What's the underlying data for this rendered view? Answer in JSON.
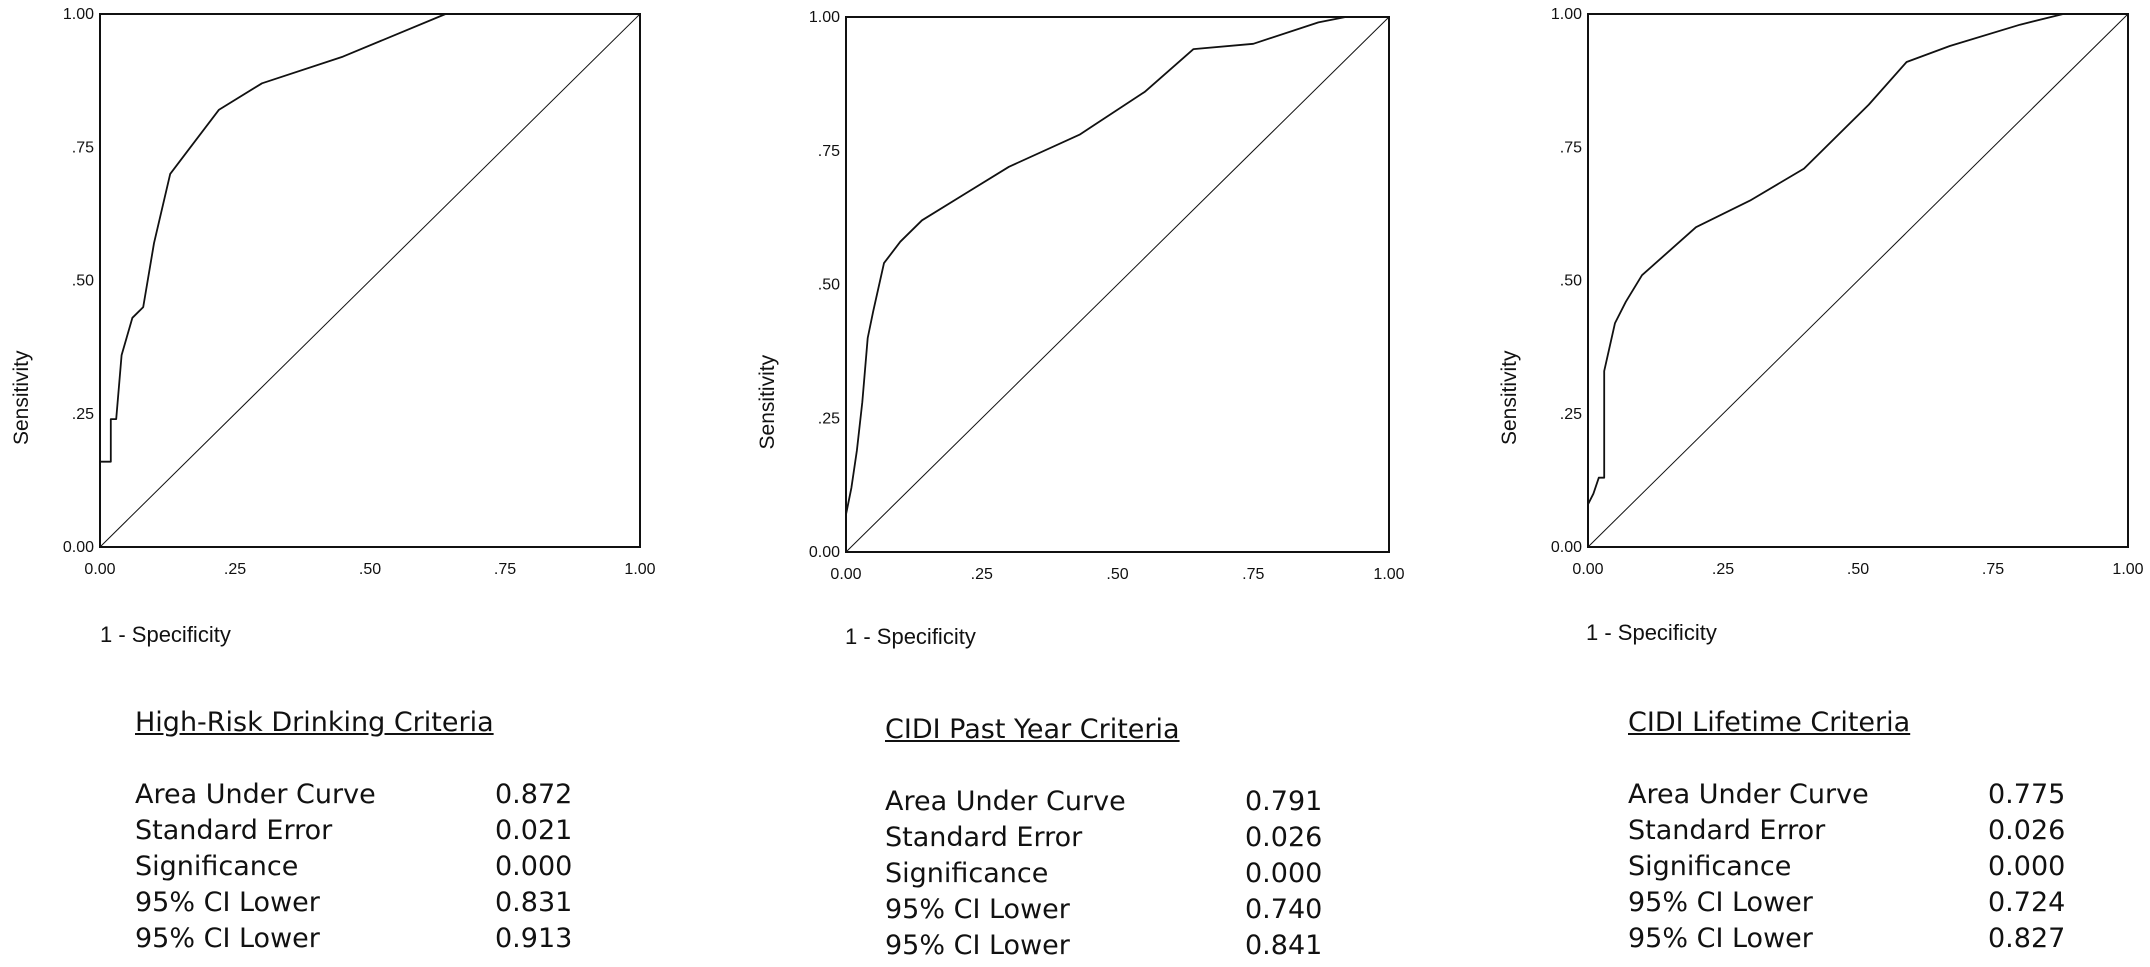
{
  "chart_data": [
    {
      "type": "line",
      "title": "High-Risk Drinking Criteria",
      "xlabel": "1 - Specificity",
      "ylabel": "Sensitivity",
      "xlim": [
        0,
        1
      ],
      "ylim": [
        0,
        1
      ],
      "x_ticks": [
        "0.00",
        ".25",
        ".50",
        ".75",
        "1.00"
      ],
      "y_ticks": [
        "0.00",
        ".25",
        ".50",
        ".75",
        "1.00"
      ],
      "grid": false,
      "series": [
        {
          "role": "roc",
          "x": [
            0,
            0,
            0.02,
            0.02,
            0.03,
            0.04,
            0.06,
            0.08,
            0.1,
            0.13,
            0.16,
            0.22,
            0.3,
            0.45,
            0.64,
            1.0
          ],
          "y": [
            0,
            0.16,
            0.16,
            0.24,
            0.24,
            0.36,
            0.43,
            0.45,
            0.57,
            0.7,
            0.74,
            0.82,
            0.87,
            0.92,
            1.0,
            1.0
          ]
        },
        {
          "role": "reference",
          "x": [
            0,
            1
          ],
          "y": [
            0,
            1
          ]
        }
      ],
      "stats": [
        {
          "label": "Area Under Curve",
          "value": "0.872"
        },
        {
          "label": "Standard Error",
          "value": "0.021"
        },
        {
          "label": "Significance",
          "value": "0.000"
        },
        {
          "label": "95% CI Lower",
          "value": "0.831"
        },
        {
          "label": "95% CI Lower",
          "value": "0.913"
        }
      ]
    },
    {
      "type": "line",
      "title": "CIDI Past Year Criteria",
      "xlabel": "1 - Specificity",
      "ylabel": "Sensitivity",
      "xlim": [
        0,
        1
      ],
      "ylim": [
        0,
        1
      ],
      "x_ticks": [
        "0.00",
        ".25",
        ".50",
        ".75",
        "1.00"
      ],
      "y_ticks": [
        "0.00",
        ".25",
        ".50",
        ".75",
        "1.00"
      ],
      "grid": false,
      "series": [
        {
          "role": "roc",
          "x": [
            0,
            0,
            0.01,
            0.02,
            0.03,
            0.04,
            0.05,
            0.07,
            0.1,
            0.14,
            0.22,
            0.3,
            0.43,
            0.55,
            0.64,
            0.75,
            0.87,
            0.92,
            1.0
          ],
          "y": [
            0,
            0.07,
            0.12,
            0.19,
            0.28,
            0.4,
            0.45,
            0.54,
            0.58,
            0.62,
            0.67,
            0.72,
            0.78,
            0.86,
            0.94,
            0.95,
            0.99,
            1.0,
            1.0
          ]
        },
        {
          "role": "reference",
          "x": [
            0,
            1
          ],
          "y": [
            0,
            1
          ]
        }
      ],
      "stats": [
        {
          "label": "Area Under Curve",
          "value": "0.791"
        },
        {
          "label": "Standard Error",
          "value": "0.026"
        },
        {
          "label": "Significance",
          "value": "0.000"
        },
        {
          "label": "95% CI Lower",
          "value": "0.740"
        },
        {
          "label": "95% CI Lower",
          "value": "0.841"
        }
      ]
    },
    {
      "type": "line",
      "title": "CIDI Lifetime Criteria",
      "xlabel": "1 - Specificity",
      "ylabel": "Sensitivity",
      "xlim": [
        0,
        1
      ],
      "ylim": [
        0,
        1
      ],
      "x_ticks": [
        "0.00",
        ".25",
        ".50",
        ".75",
        "1.00"
      ],
      "y_ticks": [
        "0.00",
        ".25",
        ".50",
        ".75",
        "1.00"
      ],
      "grid": false,
      "series": [
        {
          "role": "roc",
          "x": [
            0,
            0,
            0.01,
            0.02,
            0.03,
            0.03,
            0.05,
            0.07,
            0.1,
            0.2,
            0.3,
            0.4,
            0.52,
            0.59,
            0.67,
            0.8,
            0.88,
            1.0
          ],
          "y": [
            0,
            0.08,
            0.1,
            0.13,
            0.13,
            0.33,
            0.42,
            0.46,
            0.51,
            0.6,
            0.65,
            0.71,
            0.83,
            0.91,
            0.94,
            0.98,
            1.0,
            1.0
          ]
        },
        {
          "role": "reference",
          "x": [
            0,
            1
          ],
          "y": [
            0,
            1
          ]
        }
      ],
      "stats": [
        {
          "label": "Area Under Curve",
          "value": "0.775"
        },
        {
          "label": "Standard Error",
          "value": "0.026"
        },
        {
          "label": "Significance",
          "value": "0.000"
        },
        {
          "label": "95% CI Lower",
          "value": "0.724"
        },
        {
          "label": "95% CI Lower",
          "value": "0.827"
        }
      ]
    }
  ]
}
